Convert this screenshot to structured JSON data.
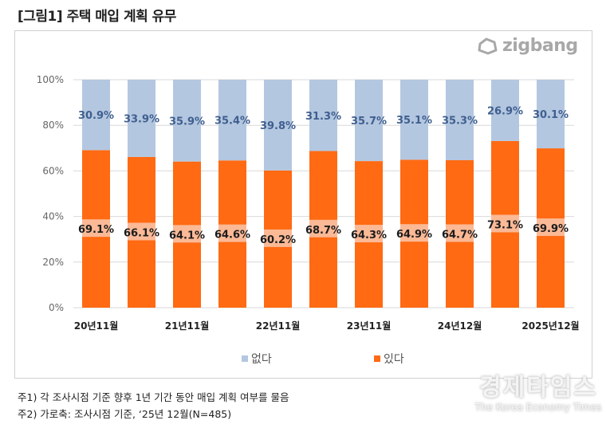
{
  "title": "[그림1] 주택 매입 계획 유무",
  "logo": {
    "text": "zigbang",
    "icon": "zigbang-logo-icon"
  },
  "chart_data": {
    "type": "bar",
    "stacked": true,
    "percent_stacked": true,
    "title": "[그림1] 주택 매입 계획 유무",
    "xlabel": "",
    "ylabel": "",
    "ylim": [
      0,
      100
    ],
    "yticks": [
      "0%",
      "20%",
      "40%",
      "60%",
      "80%",
      "100%"
    ],
    "ytick_values": [
      0,
      20,
      40,
      60,
      80,
      100
    ],
    "grid": true,
    "legend_position": "bottom",
    "categories": [
      "20년11월",
      "",
      "21년11월",
      "",
      "22년11월",
      "",
      "23년11월",
      "",
      "24년12월",
      "",
      "2025년12월"
    ],
    "x_tick_labels": [
      "20년11월",
      "21년11월",
      "22년11월",
      "23년11월",
      "24년12월",
      "2025년12월"
    ],
    "series": [
      {
        "name": "있다",
        "color": "#ff6a13",
        "values": [
          69.1,
          66.1,
          64.1,
          64.6,
          60.2,
          68.7,
          64.3,
          64.9,
          64.7,
          73.1,
          69.9
        ],
        "labels": [
          "69.1%",
          "66.1%",
          "64.1%",
          "64.6%",
          "60.2%",
          "68.7%",
          "64.3%",
          "64.9%",
          "64.7%",
          "73.1%",
          "69.9%"
        ]
      },
      {
        "name": "없다",
        "color": "#b4c7e0",
        "values": [
          30.9,
          33.9,
          35.9,
          35.4,
          39.8,
          31.3,
          35.7,
          35.1,
          35.3,
          26.9,
          30.1
        ],
        "labels": [
          "30.9%",
          "33.9%",
          "35.9%",
          "35.4%",
          "39.8%",
          "31.3%",
          "35.7%",
          "35.1%",
          "35.3%",
          "26.9%",
          "30.1%"
        ]
      }
    ]
  },
  "legend": [
    {
      "label": "없다",
      "color": "#b4c7e0"
    },
    {
      "label": "있다",
      "color": "#ff6a13"
    }
  ],
  "notes": [
    "주1) 각 조사시점 기준 향후 1년 기간 동안 매입 계획 여부를 물음",
    "주2) 가로축: 조사시점 기준, ‘25년 12월(N=485)"
  ],
  "watermark": {
    "korean": "경제타임스",
    "english": "The Korea Economy Times"
  }
}
